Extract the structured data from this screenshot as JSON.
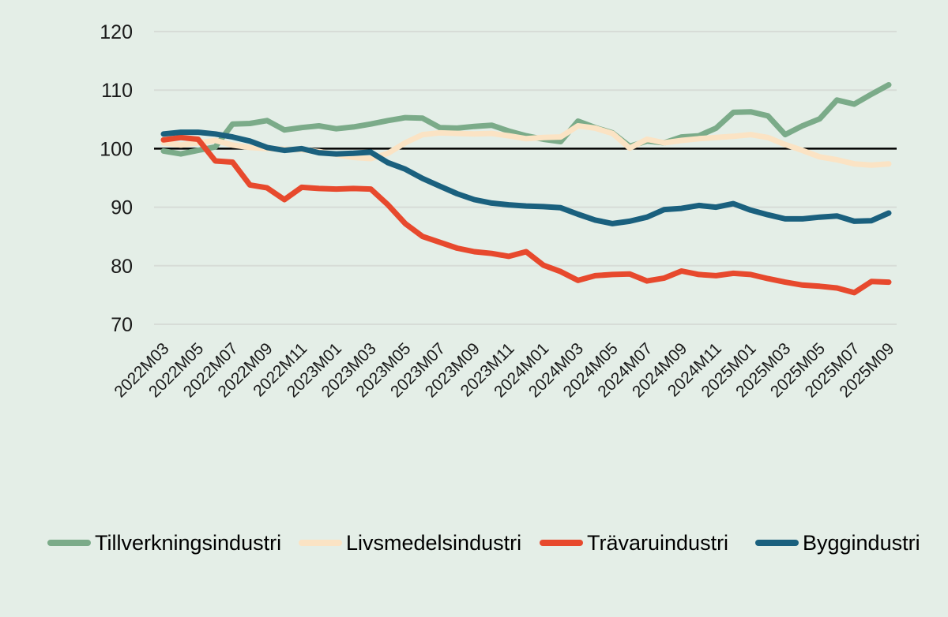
{
  "chart_data": {
    "type": "line",
    "title": "",
    "xlabel": "",
    "ylabel": "",
    "ylim": [
      70,
      120
    ],
    "yticks": [
      70,
      80,
      90,
      100,
      110,
      120
    ],
    "reference_line": 100,
    "grid": true,
    "legend_position": "bottom",
    "x_tick_step": 2,
    "x": [
      "2022M03",
      "2022M04",
      "2022M05",
      "2022M06",
      "2022M07",
      "2022M08",
      "2022M09",
      "2022M10",
      "2022M11",
      "2022M12",
      "2023M01",
      "2023M02",
      "2023M03",
      "2023M04",
      "2023M05",
      "2023M06",
      "2023M07",
      "2023M08",
      "2023M09",
      "2023M10",
      "2023M11",
      "2023M12",
      "2024M01",
      "2024M02",
      "2024M03",
      "2024M04",
      "2024M05",
      "2024M06",
      "2024M07",
      "2024M08",
      "2024M09",
      "2024M10",
      "2024M11",
      "2024M12",
      "2025M01",
      "2025M02",
      "2025M03",
      "2025M04",
      "2025M05",
      "2025M06",
      "2025M07",
      "2025M08",
      "2025M09"
    ],
    "series": [
      {
        "name": "Tillverkningsindustri",
        "color": "#7bab89",
        "values": [
          99.6,
          99.1,
          99.7,
          100.3,
          104.2,
          104.3,
          104.8,
          103.2,
          103.6,
          103.9,
          103.4,
          103.7,
          104.2,
          104.8,
          105.3,
          105.2,
          103.6,
          103.5,
          103.8,
          104.0,
          103.0,
          102.2,
          101.6,
          101.2,
          104.7,
          103.6,
          102.7,
          100.4,
          101.3,
          101.0,
          102.0,
          102.2,
          103.5,
          106.2,
          106.3,
          105.6,
          102.4,
          103.9,
          105.1,
          108.3,
          107.6,
          109.3,
          110.9
        ]
      },
      {
        "name": "Livsmedelsindustri",
        "color": "#fbe3c4",
        "values": [
          101.0,
          100.6,
          101.0,
          101.4,
          100.6,
          100.2,
          100.0,
          99.9,
          99.8,
          99.5,
          99.0,
          98.5,
          98.3,
          99.2,
          101.0,
          102.4,
          102.7,
          102.6,
          102.5,
          102.6,
          102.2,
          101.7,
          101.9,
          102.0,
          103.9,
          103.5,
          102.6,
          100.1,
          101.6,
          101.0,
          101.4,
          101.7,
          101.9,
          102.1,
          102.4,
          101.9,
          100.7,
          99.7,
          98.6,
          98.1,
          97.4,
          97.2,
          97.4
        ]
      },
      {
        "name": "Trävaruindustri",
        "color": "#e7492d",
        "values": [
          101.5,
          101.9,
          101.6,
          97.9,
          97.7,
          93.8,
          93.3,
          91.3,
          93.4,
          93.2,
          93.1,
          93.2,
          93.1,
          90.4,
          87.2,
          85.0,
          84.0,
          83.0,
          82.4,
          82.1,
          81.6,
          82.4,
          80.1,
          79.0,
          77.5,
          78.3,
          78.5,
          78.6,
          77.4,
          77.9,
          79.1,
          78.5,
          78.3,
          78.7,
          78.5,
          77.8,
          77.2,
          76.7,
          76.5,
          76.2,
          75.4,
          77.3,
          77.2
        ]
      },
      {
        "name": "Byggindustri",
        "color": "#1a607e",
        "values": [
          102.5,
          102.8,
          102.8,
          102.5,
          102.0,
          101.3,
          100.2,
          99.7,
          100.0,
          99.3,
          99.1,
          99.2,
          99.4,
          97.6,
          96.5,
          94.9,
          93.6,
          92.3,
          91.3,
          90.7,
          90.4,
          90.2,
          90.1,
          89.9,
          88.8,
          87.8,
          87.2,
          87.6,
          88.3,
          89.6,
          89.8,
          90.3,
          90.0,
          90.6,
          89.5,
          88.7,
          88.0,
          88.0,
          88.3,
          88.5,
          87.6,
          87.7,
          89.0
        ]
      }
    ],
    "colors": {
      "background": "#e4eee7",
      "grid_line": "#d7dcd7",
      "reference_line": "#000000",
      "text": "#1a1a1a"
    }
  }
}
